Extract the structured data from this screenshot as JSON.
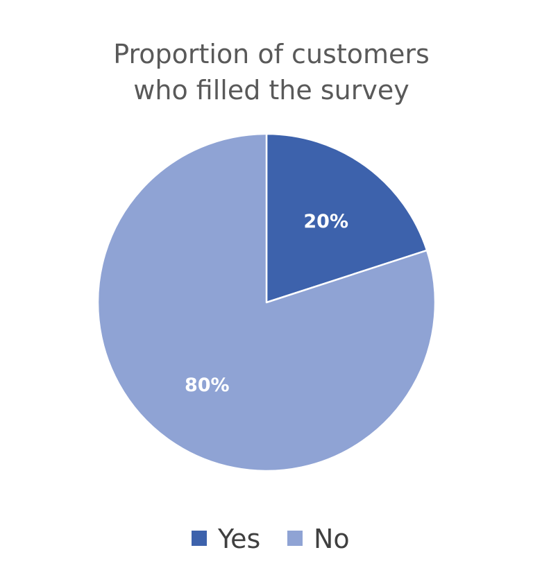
{
  "chart_data": {
    "type": "pie",
    "title": [
      "Proportion of customers",
      "who filled the survey"
    ],
    "slices": [
      {
        "label": "Yes",
        "value": 20,
        "data_label": "20%",
        "color": "#3d62ac"
      },
      {
        "label": "No",
        "value": 80,
        "data_label": "80%",
        "color": "#8fa3d4"
      }
    ],
    "legend_position": "bottom",
    "border_color": "#ffffff"
  }
}
